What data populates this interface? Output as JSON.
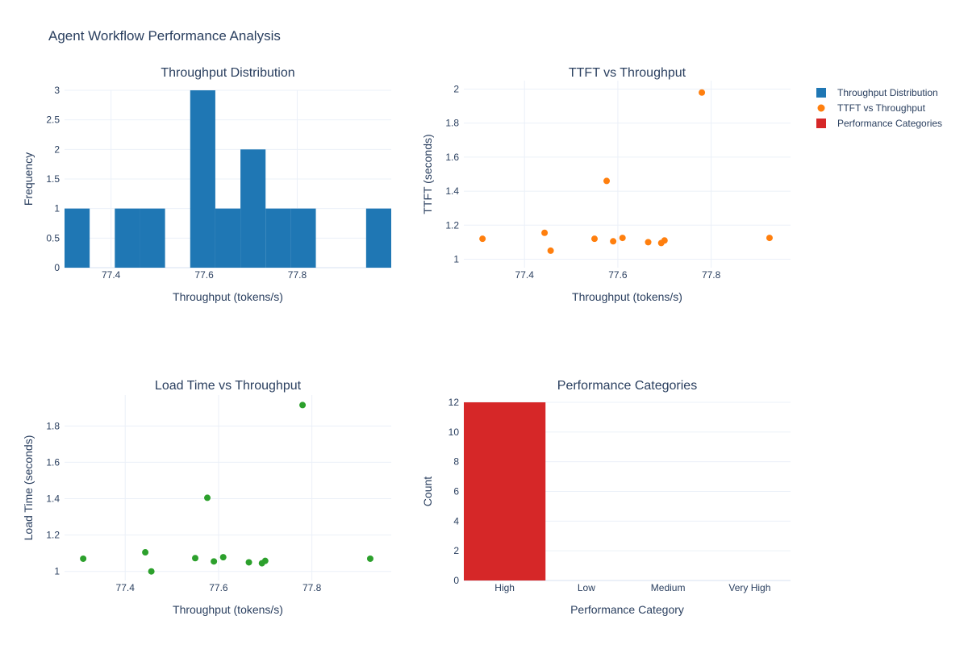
{
  "figure_title": "Agent Workflow Performance Analysis",
  "colors": {
    "hist": "#1f77b4",
    "ttft": "#ff7f0e",
    "load": "#2ca02c",
    "bar": "#d62728"
  },
  "legend": [
    {
      "name": "Throughput Distribution",
      "symbol": "square",
      "color": "#1f77b4"
    },
    {
      "name": "TTFT vs Throughput",
      "symbol": "circle",
      "color": "#ff7f0e"
    },
    {
      "name": "Performance Categories",
      "symbol": "square",
      "color": "#d62728"
    }
  ],
  "chart_data": [
    {
      "type": "bar",
      "subtype": "histogram",
      "title": "Throughput Distribution",
      "xlabel": "Throughput (tokens/s)",
      "ylabel": "Frequency",
      "bin_width": 0.054,
      "bins": [
        {
          "start": 77.3,
          "end": 77.354,
          "count": 1
        },
        {
          "start": 77.354,
          "end": 77.408,
          "count": 0
        },
        {
          "start": 77.408,
          "end": 77.462,
          "count": 1
        },
        {
          "start": 77.462,
          "end": 77.516,
          "count": 1
        },
        {
          "start": 77.516,
          "end": 77.57,
          "count": 0
        },
        {
          "start": 77.57,
          "end": 77.624,
          "count": 3
        },
        {
          "start": 77.624,
          "end": 77.678,
          "count": 1
        },
        {
          "start": 77.678,
          "end": 77.732,
          "count": 2
        },
        {
          "start": 77.732,
          "end": 77.786,
          "count": 1
        },
        {
          "start": 77.786,
          "end": 77.84,
          "count": 1
        },
        {
          "start": 77.84,
          "end": 77.894,
          "count": 0
        },
        {
          "start": 77.894,
          "end": 77.948,
          "count": 0
        },
        {
          "start": 77.948,
          "end": 78.002,
          "count": 1
        }
      ],
      "xlim": [
        77.3,
        78.002
      ],
      "ylim": [
        0,
        3
      ],
      "xticks": [
        77.4,
        77.6,
        77.8
      ],
      "yticks": [
        0,
        0.5,
        1,
        1.5,
        2,
        2.5,
        3
      ],
      "grid": true
    },
    {
      "type": "scatter",
      "title": "TTFT vs Throughput",
      "xlabel": "Throughput (tokens/s)",
      "ylabel": "TTFT (seconds)",
      "x": [
        77.31,
        77.443,
        77.456,
        77.55,
        77.576,
        77.59,
        77.61,
        77.665,
        77.693,
        77.7,
        77.78,
        77.925
      ],
      "y": [
        1.12,
        1.155,
        1.05,
        1.12,
        1.46,
        1.105,
        1.125,
        1.1,
        1.095,
        1.11,
        1.98,
        1.125
      ],
      "xlim": [
        77.27,
        77.97
      ],
      "ylim": [
        0.95,
        2.05
      ],
      "xticks": [
        77.4,
        77.6,
        77.8
      ],
      "yticks": [
        1,
        1.2,
        1.4,
        1.6,
        1.8,
        2
      ],
      "grid": true
    },
    {
      "type": "scatter",
      "title": "Load Time vs Throughput",
      "xlabel": "Throughput (tokens/s)",
      "ylabel": "Load Time (seconds)",
      "x": [
        77.31,
        77.443,
        77.456,
        77.55,
        77.576,
        77.59,
        77.61,
        77.665,
        77.693,
        77.7,
        77.78,
        77.925
      ],
      "y": [
        1.07,
        1.105,
        1.0,
        1.073,
        1.405,
        1.055,
        1.078,
        1.05,
        1.045,
        1.058,
        1.915,
        1.07
      ],
      "xlim": [
        77.27,
        77.97
      ],
      "ylim": [
        0.95,
        1.97
      ],
      "xticks": [
        77.4,
        77.6,
        77.8
      ],
      "yticks": [
        1,
        1.2,
        1.4,
        1.6,
        1.8
      ],
      "grid": true
    },
    {
      "type": "bar",
      "title": "Performance Categories",
      "xlabel": "Performance Category",
      "ylabel": "Count",
      "categories": [
        "High",
        "Low",
        "Medium",
        "Very High"
      ],
      "values": [
        12,
        0,
        0,
        0
      ],
      "ylim": [
        0,
        12
      ],
      "yticks": [
        0,
        2,
        4,
        6,
        8,
        10,
        12
      ],
      "grid": true
    }
  ]
}
